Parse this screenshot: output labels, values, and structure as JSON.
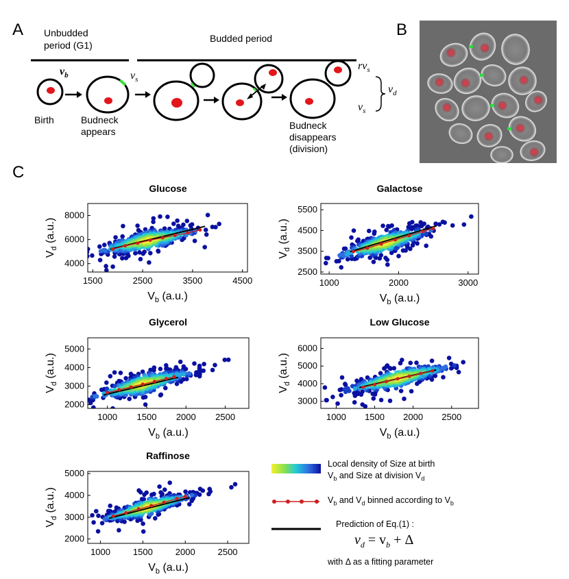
{
  "panel_labels": {
    "a": "A",
    "b": "B",
    "c": "C"
  },
  "schematic": {
    "unbudded_line1": "Unbudded",
    "unbudded_line2": "period (G1)",
    "budded_period": "Budded period",
    "birth": "Birth",
    "budneck_appears_1": "Budneck",
    "budneck_appears_2": "appears",
    "budneck_disappears_1": "Budneck",
    "budneck_disappears_2": "disappears",
    "budneck_disappears_3": "(division)",
    "v_b": "v",
    "v_b_sub": "b",
    "v_s": "v",
    "v_s_sub": "s",
    "rv_s": "rv",
    "rv_s_sub": "s",
    "v_s2": "v",
    "v_s2_sub": "s",
    "v_d": "v",
    "v_d_sub": "d"
  },
  "legend": {
    "density_line1": "Local density of Size at birth",
    "density_line2_a": "V",
    "density_line2_b": "b",
    "density_line2_c": " and Size at division V",
    "density_line2_d": "d",
    "binned_a": "V",
    "binned_b": "b",
    "binned_c": " and V",
    "binned_d": "d",
    "binned_e": " binned according to V",
    "binned_f": "b",
    "prediction": "Prediction of Eq.(1) :",
    "eq_lhs": "v",
    "eq_lhs_sub": "d",
    "eq_mid": "= v",
    "eq_mid_sub": "b",
    "eq_rhs": "+ Δ",
    "fit_note": "with Δ as a fitting parameter",
    "colors": {
      "binned": "#cc2020",
      "fit": "#000000"
    }
  },
  "chart_data": [
    {
      "type": "scatter",
      "title": "Glucose",
      "xlabel": "V",
      "xlabel_sub": "b",
      "xlabel_unit": " (a.u.)",
      "ylabel": "V",
      "ylabel_sub": "d",
      "ylabel_unit": " (a.u.)",
      "xlim": [
        1400,
        4600
      ],
      "ylim": [
        3300,
        9000
      ],
      "xticks": [
        1500,
        2500,
        3500,
        4500
      ],
      "yticks": [
        4000,
        6000,
        8000
      ],
      "center": [
        2600,
        5900
      ],
      "spread": [
        420,
        700
      ],
      "slope": 0.85,
      "fit_x": [
        1850,
        3750
      ],
      "fit_intercept": 3350,
      "binned": {
        "x": [
          1900,
          2150,
          2400,
          2650,
          2900,
          3150,
          3400,
          3650
        ],
        "y": [
          5200,
          5480,
          5700,
          5950,
          6150,
          6350,
          6550,
          6800
        ]
      }
    },
    {
      "type": "scatter",
      "title": "Galactose",
      "xlabel": "V",
      "xlabel_sub": "b",
      "xlabel_unit": " (a.u.)",
      "ylabel": "V",
      "ylabel_sub": "d",
      "ylabel_unit": " (a.u.)",
      "xlim": [
        880,
        3150
      ],
      "ylim": [
        2400,
        5800
      ],
      "xticks": [
        1000,
        2000,
        3000
      ],
      "yticks": [
        2500,
        3500,
        4500,
        5500
      ],
      "center": [
        1800,
        3900
      ],
      "spread": [
        280,
        420
      ],
      "slope": 0.95,
      "fit_x": [
        1300,
        2550
      ],
      "fit_intercept": 2180,
      "binned": {
        "x": [
          1350,
          1550,
          1750,
          1950,
          2150,
          2350,
          2500
        ],
        "y": [
          3480,
          3650,
          3850,
          4050,
          4250,
          4450,
          4600
        ]
      }
    },
    {
      "type": "scatter",
      "title": "Glycerol",
      "xlabel": "V",
      "xlabel_sub": "b",
      "xlabel_unit": " (a.u.)",
      "ylabel": "V",
      "ylabel_sub": "d",
      "ylabel_unit": " (a.u.)",
      "xlim": [
        750,
        2800
      ],
      "ylim": [
        1800,
        5600
      ],
      "xticks": [
        1000,
        1500,
        2000,
        2500
      ],
      "yticks": [
        2000,
        3000,
        4000,
        5000
      ],
      "center": [
        1450,
        3100
      ],
      "spread": [
        260,
        450
      ],
      "slope": 1.05,
      "fit_x": [
        950,
        1900
      ],
      "fit_intercept": 1570,
      "binned": {
        "x": [
          1000,
          1150,
          1300,
          1450,
          1600,
          1750,
          1850
        ],
        "y": [
          2650,
          2800,
          2950,
          3100,
          3250,
          3400,
          3500
        ]
      }
    },
    {
      "type": "scatter",
      "title": "Low Glucose",
      "xlabel": "V",
      "xlabel_sub": "b",
      "xlabel_unit": " (a.u.)",
      "ylabel": "V",
      "ylabel_sub": "d",
      "ylabel_unit": " (a.u.)",
      "xlim": [
        800,
        2850
      ],
      "ylim": [
        2600,
        6600
      ],
      "xticks": [
        1000,
        1500,
        2000,
        2500
      ],
      "yticks": [
        3000,
        4000,
        5000,
        6000
      ],
      "center": [
        1800,
        4300
      ],
      "spread": [
        280,
        450
      ],
      "slope": 1.0,
      "fit_x": [
        1300,
        2300
      ],
      "fit_intercept": 2480,
      "binned": {
        "x": [
          1350,
          1500,
          1650,
          1800,
          1950,
          2100,
          2250
        ],
        "y": [
          3800,
          3950,
          4120,
          4280,
          4420,
          4580,
          4720
        ]
      }
    },
    {
      "type": "scatter",
      "title": "Raffinose",
      "xlabel": "V",
      "xlabel_sub": "b",
      "xlabel_unit": " (a.u.)",
      "ylabel": "V",
      "ylabel_sub": "d",
      "ylabel_unit": " (a.u.)",
      "xlim": [
        850,
        2750
      ],
      "ylim": [
        1800,
        5100
      ],
      "xticks": [
        1000,
        1500,
        2000,
        2500
      ],
      "yticks": [
        2000,
        3000,
        4000,
        5000
      ],
      "center": [
        1550,
        3450
      ],
      "spread": [
        220,
        330
      ],
      "slope": 1.05,
      "fit_x": [
        1100,
        2050
      ],
      "fit_intercept": 1850,
      "binned": {
        "x": [
          1150,
          1300,
          1450,
          1600,
          1750,
          1900,
          2000
        ],
        "y": [
          3050,
          3200,
          3380,
          3530,
          3680,
          3850,
          3950
        ]
      }
    }
  ]
}
